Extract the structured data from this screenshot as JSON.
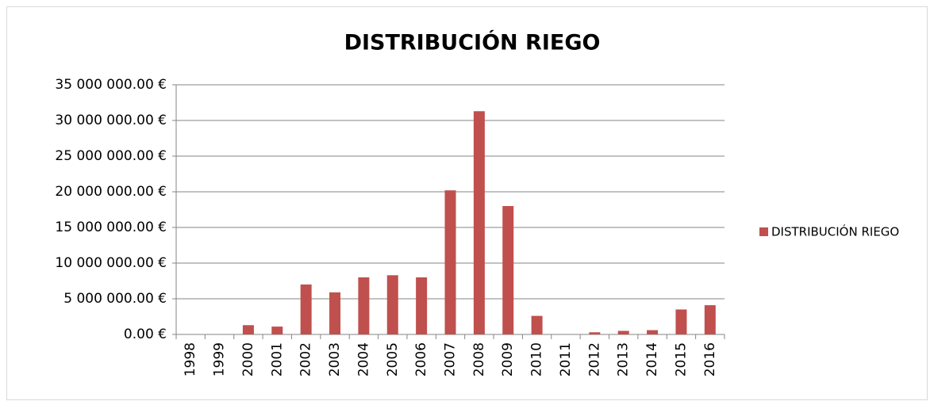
{
  "chart_data": {
    "type": "bar",
    "title": "DISTRIBUCIÓN RIEGO",
    "categories": [
      "1998",
      "1999",
      "2000",
      "2001",
      "2002",
      "2003",
      "2004",
      "2005",
      "2006",
      "2007",
      "2008",
      "2009",
      "2010",
      "2011",
      "2012",
      "2013",
      "2014",
      "2015",
      "2016"
    ],
    "series": [
      {
        "name": "DISTRIBUCIÓN RIEGO",
        "color": "#c0504d",
        "values": [
          0,
          0,
          1300000,
          1100000,
          7000000,
          5900000,
          8000000,
          8300000,
          8000000,
          20200000,
          31300000,
          18000000,
          2600000,
          0,
          300000,
          500000,
          600000,
          3500000,
          4100000
        ]
      }
    ],
    "ylim": [
      0,
      35000000
    ],
    "yticks": [
      {
        "value": 0,
        "label": "0.00 €"
      },
      {
        "value": 5000000,
        "label": "5 000 000.00 €"
      },
      {
        "value": 10000000,
        "label": "10 000 000.00 €"
      },
      {
        "value": 15000000,
        "label": "15 000 000.00 €"
      },
      {
        "value": 20000000,
        "label": "20 000 000.00 €"
      },
      {
        "value": 25000000,
        "label": "25 000 000.00 €"
      },
      {
        "value": 30000000,
        "label": "30 000 000.00 €"
      },
      {
        "value": 35000000,
        "label": "35 000 000.00 €"
      }
    ],
    "grid": true,
    "legend": "right"
  }
}
